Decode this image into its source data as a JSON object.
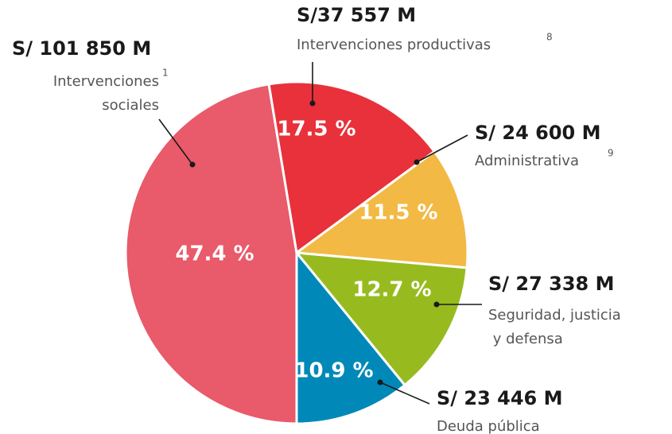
{
  "chart_data": {
    "type": "pie",
    "categories": [
      "Intervenciones sociales",
      "Intervenciones productivas",
      "Administrativa",
      "Seguridad, justicia y defensa",
      "Deuda pública"
    ],
    "values": [
      47.4,
      17.5,
      11.5,
      12.7,
      10.9
    ],
    "value_labels": [
      "47.4 %",
      "17.5 %",
      "11.5 %",
      "12.7 %",
      "10.9 %"
    ],
    "amounts": [
      "S/ 101 850 M",
      "S/37 557 M",
      "S/ 24 600 M",
      "S/ 27 338 M",
      "S/ 23 446 M"
    ],
    "footnote_refs": [
      "1",
      "8",
      "9",
      null,
      null
    ],
    "colors": [
      "#e95a6a",
      "#e8313a",
      "#f2b944",
      "#97bb1f",
      "#0089b8"
    ]
  }
}
